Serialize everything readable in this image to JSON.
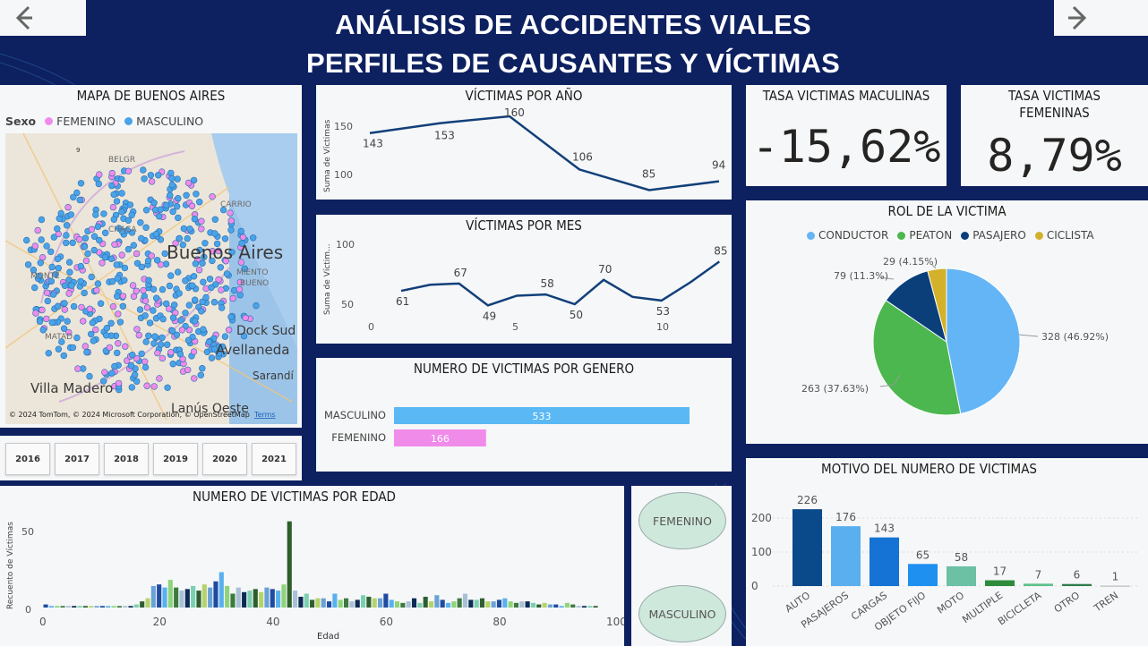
{
  "header": {
    "title_line1": "ANÁLISIS DE ACCIDENTES VIALES",
    "title_line2": "PERFILES DE CAUSANTES Y VÍCTIMAS"
  },
  "map": {
    "title": "MAPA DE BUENOS AIRES",
    "legend_label": "Sexo",
    "legend": [
      {
        "name": "FEMENINO",
        "color": "#f08bea"
      },
      {
        "name": "MASCULINO",
        "color": "#4aa3e8"
      }
    ],
    "place_labels": [
      "Buenos Aires",
      "Villa Madero",
      "Lanús Oeste",
      "Avellaneda",
      "Dock Sud",
      "Sarandí",
      "CHACA",
      "MONTE",
      "BELGR",
      "CARRIO",
      "MIENTO",
      "BUENO",
      "MATAD",
      "9"
    ],
    "attribution": "© 2024 TomTom, © 2024 Microsoft Corporation, © OpenStreetMap",
    "attribution_terms": "Terms"
  },
  "years": [
    "2016",
    "2017",
    "2018",
    "2019",
    "2020",
    "2021"
  ],
  "victims_by_year": {
    "title": "VÍCTIMAS POR AÑO",
    "ylabel": "Suma de Víctimas",
    "yticks": [
      "150",
      "100"
    ],
    "values": [
      143,
      153,
      160,
      106,
      85,
      94
    ],
    "labels": [
      "143",
      "153",
      "160",
      "106",
      "85",
      "94"
    ]
  },
  "victims_by_month": {
    "title": "VÍCTIMAS POR MES",
    "ylabel": "Suma de Víctim...",
    "yticks": [
      "100",
      "50"
    ],
    "xticks": [
      "0",
      "5",
      "10"
    ],
    "points": [
      [
        1,
        61
      ],
      [
        2,
        66
      ],
      [
        3,
        67
      ],
      [
        4,
        49
      ],
      [
        5,
        57
      ],
      [
        6,
        58
      ],
      [
        7,
        50
      ],
      [
        8,
        70
      ],
      [
        9,
        56
      ],
      [
        10,
        53
      ],
      [
        11,
        68
      ],
      [
        12,
        85
      ]
    ],
    "labels": [
      [
        "1",
        "61"
      ],
      [
        "3",
        "67"
      ],
      [
        "4",
        "49"
      ],
      [
        "6",
        "58"
      ],
      [
        "7",
        "50"
      ],
      [
        "8",
        "70"
      ],
      [
        "10",
        "53"
      ],
      [
        "12",
        "85"
      ]
    ]
  },
  "by_gender": {
    "title": "NUMERO DE VICTIMAS POR GENERO",
    "rows": [
      {
        "label": "MASCULINO",
        "value": 533,
        "value_text": "533",
        "color": "#5ab8f5"
      },
      {
        "label": "FEMENINO",
        "value": 166,
        "value_text": "166",
        "color": "#f08bea"
      }
    ]
  },
  "kpi_male": {
    "title": "TASA VICTIMAS MACULINAS",
    "value": "-15,62%"
  },
  "kpi_female": {
    "title_line1": "TASA VICTIMAS",
    "title_line2": "FEMENINAS",
    "value": "8,79%"
  },
  "role": {
    "title": "ROL DE LA VICTIMA",
    "legend": [
      {
        "name": "CONDUCTOR",
        "color": "#64b5f6"
      },
      {
        "name": "PEATON",
        "color": "#4cb74e"
      },
      {
        "name": "PASAJERO",
        "color": "#0b3f7a"
      },
      {
        "name": "CICLISTA",
        "color": "#d4b12a"
      }
    ],
    "values": [
      328,
      263,
      79,
      29
    ],
    "labels": [
      "328 (46.92%)",
      "263 (37.63%)",
      "79 (11.3%)",
      "29 (4.15%)"
    ]
  },
  "age": {
    "title": "NUMERO DE VICTIMAS POR EDAD",
    "ylabel": "Recuento de Víctimas",
    "xlabel": "Edad",
    "yticks": [
      "50",
      "0"
    ],
    "xticks": [
      "0",
      "20",
      "40",
      "60",
      "80",
      "100"
    ]
  },
  "gender_slicer": {
    "female": "FEMENINO",
    "male": "MASCULINO"
  },
  "motive": {
    "title": "MOTIVO DEL NUMERO DE VICTIMAS",
    "yticks": [
      "200",
      "100",
      "0"
    ],
    "categories": [
      "AUTO",
      "PASAJEROS",
      "CARGAS",
      "OBJETO FIJO",
      "MOTO",
      "MULTIPLE",
      "BICICLETA",
      "OTRO",
      "TREN"
    ],
    "values": [
      226,
      176,
      143,
      65,
      58,
      17,
      7,
      6,
      1
    ],
    "labels": [
      "226",
      "176",
      "143",
      "65",
      "58",
      "17",
      "7",
      "6",
      "1"
    ],
    "colors": [
      "#0b4a8a",
      "#5ab0ee",
      "#1473d4",
      "#1e90f0",
      "#6cc0a4",
      "#2e8b3c",
      "#5fc08a",
      "#2e7d4a",
      "#b0b0b0"
    ]
  }
}
